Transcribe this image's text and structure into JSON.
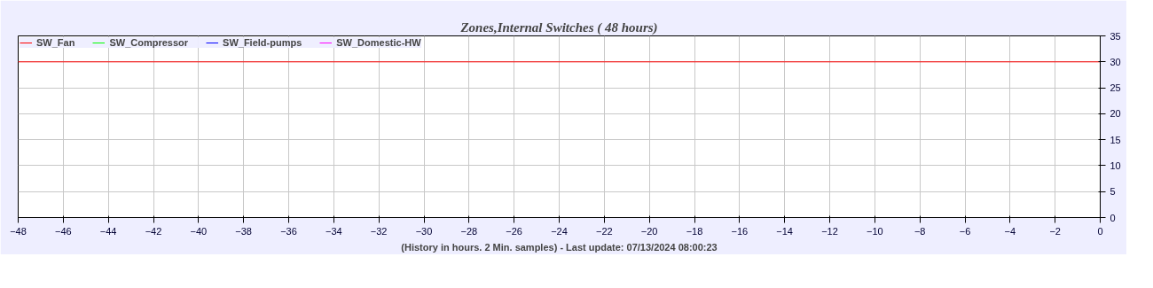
{
  "chart_data": {
    "type": "line",
    "title": "Zones,Internal Switches ( 48 hours)",
    "xlabel": "(History in hours. 2 Min. samples) - Last update: 07/13/2024 08:00:23",
    "x": [
      -48,
      0
    ],
    "series": [
      {
        "name": "SW_Fan",
        "color": "#ff0000",
        "values": [
          30,
          30
        ]
      },
      {
        "name": "SW_Compressor",
        "color": "#00ff00",
        "values": [
          null,
          null
        ]
      },
      {
        "name": "SW_Field-pumps",
        "color": "#0000ff",
        "values": [
          null,
          null
        ]
      },
      {
        "name": "SW_Domestic-HW",
        "color": "#ff00ff",
        "values": [
          null,
          null
        ]
      }
    ],
    "xlim": [
      -48,
      0
    ],
    "xticks": [
      -48,
      -46,
      -44,
      -42,
      -40,
      -38,
      -36,
      -34,
      -32,
      -30,
      -28,
      -26,
      -24,
      -22,
      -20,
      -18,
      -16,
      -14,
      -12,
      -10,
      -8,
      -6,
      -4,
      -2,
      0
    ],
    "ylim": [
      0,
      35
    ],
    "yticks": [
      0,
      5,
      10,
      15,
      20,
      25,
      30,
      35
    ],
    "grid": true,
    "legend": "top left",
    "marker": "none",
    "line_style": "solid"
  }
}
